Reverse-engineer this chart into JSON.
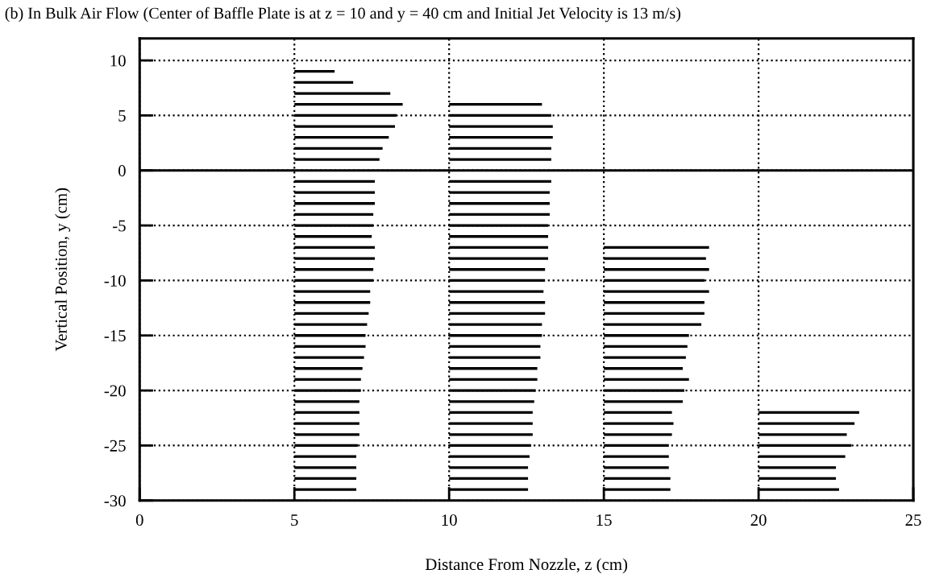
{
  "chart_data": {
    "type": "bar",
    "orientation": "horizontal",
    "title": "(b) In Bulk Air Flow (Center of Baffle Plate is at z = 10 and y = 40 cm and Initial Jet Velocity is 13 m/s)",
    "xlabel": "Distance From Nozzle, z (cm)",
    "ylabel": "Vertical Position, y (cm)",
    "series": [
      {
        "color": "#000000",
        "x": [
          9,
          8,
          7,
          6,
          5,
          4,
          3,
          2,
          1,
          -1,
          -2,
          -3,
          -4,
          -5,
          -6,
          -7,
          -8,
          -9,
          -10,
          -11,
          -12,
          -13,
          -14,
          -15,
          -16,
          -17,
          -18,
          -19,
          -20,
          -21,
          -22,
          -23,
          -24,
          -25,
          -26,
          -27,
          -28,
          -29
        ],
        "base": [
          5,
          5,
          5,
          5,
          5,
          5,
          5,
          5,
          5,
          5,
          5,
          5,
          5,
          5,
          5,
          5,
          5,
          5,
          5,
          5,
          5,
          5,
          5,
          5,
          5,
          5,
          5,
          5,
          5,
          5,
          5,
          5,
          5,
          5,
          5,
          5,
          5,
          5
        ],
        "values": [
          1.3,
          1.9,
          3.1,
          3.5,
          3.3,
          3.25,
          3.05,
          2.85,
          2.75,
          2.6,
          2.6,
          2.6,
          2.55,
          2.55,
          2.5,
          2.6,
          2.6,
          2.55,
          2.55,
          2.45,
          2.45,
          2.4,
          2.35,
          2.3,
          2.3,
          2.25,
          2.2,
          2.15,
          2.15,
          2.1,
          2.1,
          2.1,
          2.1,
          2.05,
          2.0,
          2.0,
          2.0,
          2.0
        ]
      },
      {
        "color": "#000000",
        "x": [
          6,
          5,
          4,
          3,
          2,
          1,
          -1,
          -2,
          -3,
          -4,
          -5,
          -6,
          -7,
          -8,
          -9,
          -10,
          -11,
          -12,
          -13,
          -14,
          -15,
          -16,
          -17,
          -18,
          -19,
          -20,
          -21,
          -22,
          -23,
          -24,
          -25,
          -26,
          -27,
          -28,
          -29
        ],
        "base": [
          10,
          10,
          10,
          10,
          10,
          10,
          10,
          10,
          10,
          10,
          10,
          10,
          10,
          10,
          10,
          10,
          10,
          10,
          10,
          10,
          10,
          10,
          10,
          10,
          10,
          10,
          10,
          10,
          10,
          10,
          10,
          10,
          10,
          10,
          10
        ],
        "values": [
          3.0,
          3.3,
          3.35,
          3.35,
          3.3,
          3.3,
          3.3,
          3.25,
          3.25,
          3.25,
          3.2,
          3.2,
          3.2,
          3.2,
          3.1,
          3.1,
          3.05,
          3.1,
          3.1,
          3.0,
          3.0,
          2.95,
          2.95,
          2.85,
          2.85,
          2.8,
          2.75,
          2.7,
          2.7,
          2.7,
          2.65,
          2.6,
          2.55,
          2.55,
          2.55
        ]
      },
      {
        "color": "#000000",
        "x": [
          -7,
          -8,
          -9,
          -10,
          -11,
          -12,
          -13,
          -14,
          -15,
          -16,
          -17,
          -18,
          -19,
          -20,
          -21,
          -22,
          -23,
          -24,
          -25,
          -26,
          -27,
          -28,
          -29
        ],
        "base": [
          15,
          15,
          15,
          15,
          15,
          15,
          15,
          15,
          15,
          15,
          15,
          15,
          15,
          15,
          15,
          15,
          15,
          15,
          15,
          15,
          15,
          15,
          15
        ],
        "values": [
          3.4,
          3.3,
          3.4,
          3.25,
          3.4,
          3.25,
          3.25,
          3.15,
          2.75,
          2.7,
          2.65,
          2.55,
          2.75,
          2.6,
          2.55,
          2.2,
          2.25,
          2.2,
          2.1,
          2.1,
          2.1,
          2.15,
          2.15
        ]
      },
      {
        "color": "#000000",
        "x": [
          -22,
          -23,
          -24,
          -25,
          -26,
          -27,
          -28,
          -29
        ],
        "base": [
          20,
          20,
          20,
          20,
          20,
          20,
          20,
          20
        ],
        "values": [
          3.25,
          3.1,
          2.85,
          3.0,
          2.8,
          2.5,
          2.5,
          2.6
        ]
      }
    ],
    "xlim": [
      0,
      25
    ],
    "xticks": [
      0,
      5,
      10,
      15,
      20,
      25
    ],
    "ylim": [
      -30,
      12
    ],
    "yticks": [
      -30,
      -25,
      -20,
      -15,
      -10,
      -5,
      0,
      5,
      10
    ],
    "ref_lines": [
      {
        "axis": "y",
        "value": 0,
        "color": "#000000",
        "line_style": "solid"
      }
    ],
    "grid": true
  }
}
